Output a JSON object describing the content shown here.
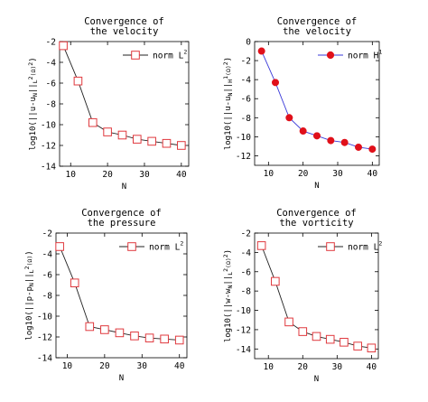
{
  "chart_data": [
    {
      "type": "line",
      "title": [
        "Convergence of",
        "the velocity"
      ],
      "xlabel": "N",
      "ylabel": "log10(||u-u_N||_{L^2(Ω)^2})",
      "ylabel_parts": {
        "pre": "log10(||u-u",
        "sub1": "N",
        "mid": "||",
        "sub2": "L",
        "sup2": "2",
        "post": "(Ω)",
        "sup3": "2",
        "end": ")"
      },
      "xlim": [
        7,
        42
      ],
      "ylim": [
        -14,
        -2
      ],
      "xticks": [
        10,
        20,
        30,
        40
      ],
      "yticks": [
        -14,
        -12,
        -10,
        -8,
        -6,
        -4,
        -2
      ],
      "legend_position": "top-right",
      "grid": false,
      "series": [
        {
          "name": "norm L^2",
          "name_parts": {
            "base": "norm L",
            "sup": "2"
          },
          "marker": "square-open",
          "color": "#e0393e",
          "line_color": "#222222",
          "x": [
            8,
            12,
            16,
            20,
            24,
            28,
            32,
            36,
            40
          ],
          "y": [
            -2.4,
            -5.8,
            -9.8,
            -10.7,
            -11.0,
            -11.4,
            -11.6,
            -11.8,
            -12.0
          ]
        }
      ]
    },
    {
      "type": "line",
      "title": [
        "Convergence of",
        "the velocity"
      ],
      "xlabel": "N",
      "ylabel": "log10(||u-u_N||_{H^1(Ω)^2})",
      "ylabel_parts": {
        "pre": "log10(||u-u",
        "sub1": "N",
        "mid": "||",
        "sub2": "H",
        "sup2": "1",
        "post": "(Ω)",
        "sup3": "2",
        "end": ")"
      },
      "xlim": [
        6,
        42
      ],
      "ylim": [
        -13,
        0
      ],
      "xticks": [
        10,
        20,
        30,
        40
      ],
      "yticks": [
        -12,
        -10,
        -8,
        -6,
        -4,
        -2,
        0
      ],
      "legend_position": "top-right",
      "grid": false,
      "series": [
        {
          "name": "norm H^1",
          "name_parts": {
            "base": "norm H",
            "sup": "1"
          },
          "marker": "circle-filled",
          "color": "#e0101a",
          "line_color": "#3a3ad8",
          "x": [
            8,
            12,
            16,
            20,
            24,
            28,
            32,
            36,
            40
          ],
          "y": [
            -1.0,
            -4.3,
            -8.0,
            -9.4,
            -9.9,
            -10.4,
            -10.6,
            -11.1,
            -11.3
          ]
        }
      ]
    },
    {
      "type": "line",
      "title": [
        "Convergence of",
        "the pressure"
      ],
      "xlabel": "N",
      "ylabel": "log10(||p-p_N||_{L^2(Ω)})",
      "ylabel_parts": {
        "pre": "log10(||p-p",
        "sub1": "N",
        "mid": "||",
        "sub2": "L",
        "sup2": "2",
        "post": "(Ω)",
        "sup3": "",
        "end": ")"
      },
      "xlim": [
        7,
        42
      ],
      "ylim": [
        -14,
        -2
      ],
      "xticks": [
        10,
        20,
        30,
        40
      ],
      "yticks": [
        -14,
        -12,
        -10,
        -8,
        -6,
        -4,
        -2
      ],
      "legend_position": "top-right",
      "grid": false,
      "series": [
        {
          "name": "norm L^2",
          "name_parts": {
            "base": "norm L",
            "sup": "2"
          },
          "marker": "square-open",
          "color": "#e0393e",
          "line_color": "#222222",
          "x": [
            8,
            12,
            16,
            20,
            24,
            28,
            32,
            36,
            40
          ],
          "y": [
            -3.3,
            -6.8,
            -11.0,
            -11.3,
            -11.6,
            -11.9,
            -12.1,
            -12.2,
            -12.3
          ]
        }
      ]
    },
    {
      "type": "line",
      "title": [
        "Convergence of",
        "the vorticity"
      ],
      "xlabel": "N",
      "ylabel": "log10(||w-w_N||_{L^2(Ω)^2})",
      "ylabel_parts": {
        "pre": "log10(||w-w",
        "sub1": "N",
        "mid": "||",
        "sub2": "L",
        "sup2": "2",
        "post": "(Ω)",
        "sup3": "2",
        "end": ")"
      },
      "xlim": [
        6,
        42
      ],
      "ylim": [
        -15,
        -2
      ],
      "xticks": [
        10,
        20,
        30,
        40
      ],
      "yticks": [
        -14,
        -12,
        -10,
        -8,
        -6,
        -4,
        -2
      ],
      "legend_position": "top-right",
      "grid": false,
      "series": [
        {
          "name": "norm L^2",
          "name_parts": {
            "base": "norm L",
            "sup": "2"
          },
          "marker": "square-open",
          "color": "#e0393e",
          "line_color": "#222222",
          "x": [
            8,
            12,
            16,
            20,
            24,
            28,
            32,
            36,
            40
          ],
          "y": [
            -3.3,
            -7.0,
            -11.2,
            -12.2,
            -12.7,
            -13.0,
            -13.3,
            -13.7,
            -13.9
          ]
        }
      ]
    }
  ]
}
